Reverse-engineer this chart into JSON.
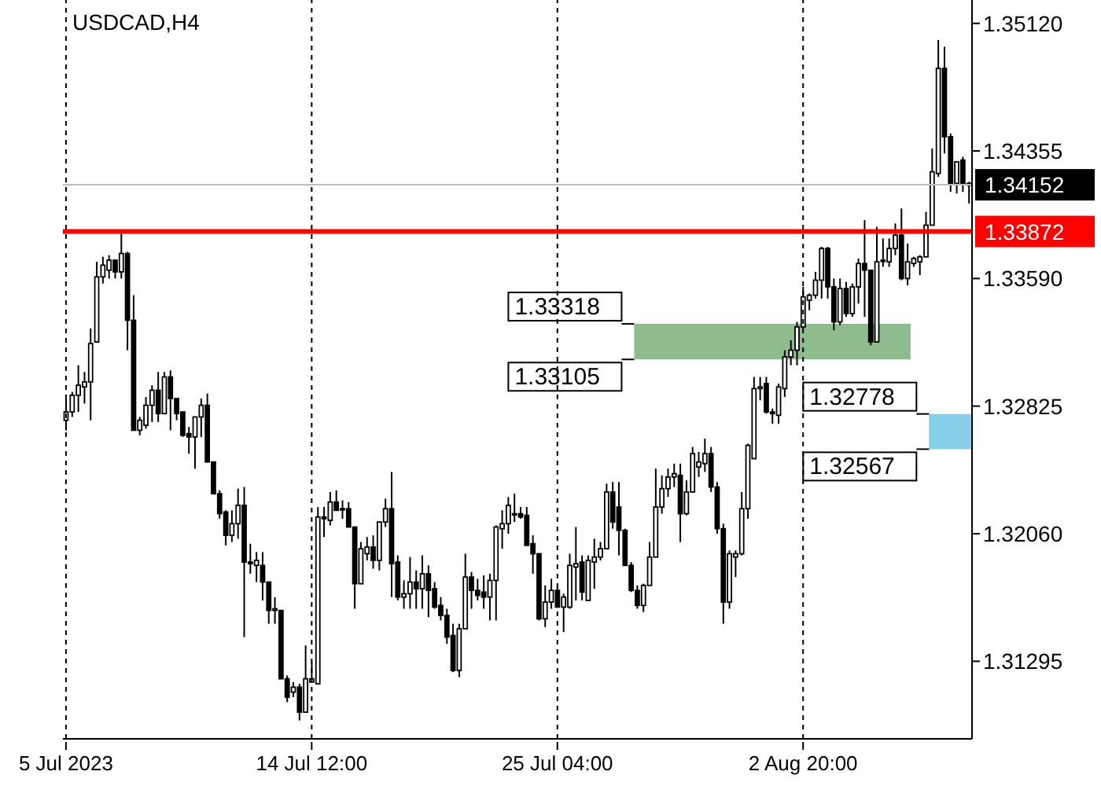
{
  "chart_data": {
    "type": "candlestick",
    "title": "USDCAD,H4",
    "color": "#000000",
    "categories": [
      "5 Jul 2023",
      null,
      null,
      null,
      null,
      null,
      null,
      null,
      null,
      null,
      null,
      null,
      null,
      null,
      null,
      null,
      null,
      null,
      null,
      null,
      null,
      null,
      null,
      null,
      null,
      null,
      null,
      null,
      null,
      null,
      null,
      null,
      null,
      null,
      null,
      null,
      null,
      null,
      null,
      null,
      "14 Jul 12:00",
      null,
      null,
      null,
      null,
      null,
      null,
      null,
      null,
      null,
      null,
      null,
      null,
      null,
      null,
      null,
      null,
      null,
      null,
      null,
      null,
      null,
      null,
      null,
      null,
      null,
      null,
      null,
      null,
      null,
      null,
      null,
      null,
      null,
      null,
      null,
      null,
      null,
      null,
      null,
      "25 Jul 04:00",
      null,
      null,
      null,
      null,
      null,
      null,
      null,
      null,
      null,
      null,
      null,
      null,
      null,
      null,
      null,
      null,
      null,
      null,
      null,
      null,
      null,
      null,
      null,
      null,
      null,
      null,
      null,
      null,
      null,
      null,
      null,
      null,
      null,
      null,
      null,
      null,
      null,
      null,
      null,
      "2 Aug 20:00",
      null,
      null,
      null,
      null,
      null,
      null,
      null,
      null,
      null,
      null,
      null,
      null,
      null,
      null,
      null,
      null,
      null,
      null,
      null,
      null,
      null,
      null,
      null,
      null,
      null,
      null,
      null
    ],
    "ohlc": [
      [
        1.3274,
        1.3287,
        1.3268,
        1.3279
      ],
      [
        1.3279,
        1.3291,
        1.3276,
        1.3289
      ],
      [
        1.3289,
        1.3307,
        1.3279,
        1.3295
      ],
      [
        1.3294,
        1.3303,
        1.3284,
        1.3297
      ],
      [
        1.3297,
        1.3329,
        1.3274,
        1.332
      ],
      [
        1.3321,
        1.3369,
        1.3321,
        1.336
      ],
      [
        1.336,
        1.3372,
        1.3356,
        1.3367
      ],
      [
        1.3364,
        1.3373,
        1.3359,
        1.337
      ],
      [
        1.337,
        1.337,
        1.3359,
        1.3363
      ],
      [
        1.3363,
        1.3386,
        1.3359,
        1.3374
      ],
      [
        1.3374,
        1.3375,
        1.3316,
        1.3334
      ],
      [
        1.3334,
        1.3349,
        1.3268,
        1.3268
      ],
      [
        1.3268,
        1.3276,
        1.3265,
        1.3274
      ],
      [
        1.3271,
        1.3288,
        1.3269,
        1.3283
      ],
      [
        1.3283,
        1.3295,
        1.3273,
        1.3292
      ],
      [
        1.3292,
        1.3303,
        1.3273,
        1.3278
      ],
      [
        1.3278,
        1.3303,
        1.3278,
        1.33
      ],
      [
        1.33,
        1.3304,
        1.3268,
        1.3287
      ],
      [
        1.3287,
        1.3287,
        1.3274,
        1.3278
      ],
      [
        1.3279,
        1.3279,
        1.3264,
        1.3265
      ],
      [
        1.3266,
        1.327,
        1.3254,
        1.3264
      ],
      [
        1.3264,
        1.3276,
        1.3245,
        1.3276
      ],
      [
        1.3276,
        1.3287,
        1.3264,
        1.3283
      ],
      [
        1.3283,
        1.329,
        1.3249,
        1.3249
      ],
      [
        1.3249,
        1.3249,
        1.323,
        1.323
      ],
      [
        1.323,
        1.3232,
        1.3215,
        1.3218
      ],
      [
        1.3219,
        1.322,
        1.3199,
        1.3205
      ],
      [
        1.3205,
        1.322,
        1.3201,
        1.3212
      ],
      [
        1.3212,
        1.3233,
        1.3203,
        1.3223
      ],
      [
        1.3223,
        1.3234,
        1.3144,
        1.3189
      ],
      [
        1.3189,
        1.32,
        1.3182,
        1.3188
      ],
      [
        1.3187,
        1.3195,
        1.3177,
        1.319
      ],
      [
        1.3187,
        1.3195,
        1.3166,
        1.3177
      ],
      [
        1.3177,
        1.3177,
        1.3152,
        1.316
      ],
      [
        1.316,
        1.3168,
        1.3152,
        1.3161
      ],
      [
        1.316,
        1.316,
        1.3119,
        1.3119
      ],
      [
        1.3119,
        1.3121,
        1.3105,
        1.3108
      ],
      [
        1.3111,
        1.3117,
        1.3108,
        1.3114
      ],
      [
        1.3114,
        1.3116,
        1.3094,
        1.3099
      ],
      [
        1.3099,
        1.3139,
        1.3099,
        1.3119
      ],
      [
        1.3117,
        1.3129,
        1.3117,
        1.3119
      ],
      [
        1.3116,
        1.3222,
        1.3116,
        1.3216
      ],
      [
        1.3216,
        1.3222,
        1.3204,
        1.3215
      ],
      [
        1.3214,
        1.3231,
        1.3211,
        1.3225
      ],
      [
        1.3225,
        1.3232,
        1.322,
        1.322
      ],
      [
        1.3221,
        1.3226,
        1.3215,
        1.3221
      ],
      [
        1.3221,
        1.3225,
        1.321,
        1.321
      ],
      [
        1.321,
        1.321,
        1.3161,
        1.3176
      ],
      [
        1.3176,
        1.3201,
        1.3176,
        1.3197
      ],
      [
        1.3194,
        1.3204,
        1.319,
        1.3198
      ],
      [
        1.3198,
        1.3205,
        1.3185,
        1.319
      ],
      [
        1.319,
        1.3213,
        1.3184,
        1.3213
      ],
      [
        1.3213,
        1.3227,
        1.321,
        1.3221
      ],
      [
        1.3221,
        1.3243,
        1.3168,
        1.3188
      ],
      [
        1.3189,
        1.3193,
        1.3166,
        1.3168
      ],
      [
        1.3168,
        1.3178,
        1.3161,
        1.317
      ],
      [
        1.317,
        1.3192,
        1.3161,
        1.3177
      ],
      [
        1.3177,
        1.3184,
        1.3161,
        1.3173
      ],
      [
        1.3173,
        1.3193,
        1.3161,
        1.3182
      ],
      [
        1.3182,
        1.3187,
        1.3156,
        1.3172
      ],
      [
        1.3173,
        1.3177,
        1.3161,
        1.3162
      ],
      [
        1.3163,
        1.3168,
        1.3154,
        1.3157
      ],
      [
        1.3157,
        1.3161,
        1.314,
        1.3144
      ],
      [
        1.3145,
        1.3152,
        1.3123,
        1.3124
      ],
      [
        1.3124,
        1.3152,
        1.312,
        1.3149
      ],
      [
        1.3149,
        1.3194,
        1.3149,
        1.318
      ],
      [
        1.318,
        1.3183,
        1.3161,
        1.3172
      ],
      [
        1.3172,
        1.3179,
        1.3166,
        1.3169
      ],
      [
        1.3171,
        1.3181,
        1.3161,
        1.3168
      ],
      [
        1.3168,
        1.3182,
        1.3154,
        1.3178
      ],
      [
        1.3178,
        1.3211,
        1.3154,
        1.321
      ],
      [
        1.3209,
        1.322,
        1.3197,
        1.3212
      ],
      [
        1.3212,
        1.3228,
        1.3206,
        1.3223
      ],
      [
        1.3218,
        1.323,
        1.3213,
        1.3218
      ],
      [
        1.3218,
        1.3222,
        1.3215,
        1.3216
      ],
      [
        1.3217,
        1.3222,
        1.3199,
        1.3199
      ],
      [
        1.32,
        1.3205,
        1.3182,
        1.3194
      ],
      [
        1.3194,
        1.3194,
        1.3154,
        1.3155
      ],
      [
        1.3155,
        1.3175,
        1.315,
        1.3165
      ],
      [
        1.3165,
        1.3179,
        1.3161,
        1.3172
      ],
      [
        1.3172,
        1.3175,
        1.3162,
        1.3162
      ],
      [
        1.3162,
        1.317,
        1.3147,
        1.3168
      ],
      [
        1.3162,
        1.3194,
        1.3161,
        1.3187
      ],
      [
        1.3186,
        1.321,
        1.3166,
        1.3188
      ],
      [
        1.3189,
        1.3193,
        1.3166,
        1.3171
      ],
      [
        1.3166,
        1.3193,
        1.3166,
        1.319
      ],
      [
        1.3189,
        1.3203,
        1.3173,
        1.3192
      ],
      [
        1.3192,
        1.3201,
        1.319,
        1.3197
      ],
      [
        1.3197,
        1.3236,
        1.3197,
        1.3231
      ],
      [
        1.3231,
        1.3237,
        1.3209,
        1.3213
      ],
      [
        1.3222,
        1.3237,
        1.3193,
        1.3208
      ],
      [
        1.3208,
        1.3209,
        1.3187,
        1.3187
      ],
      [
        1.3187,
        1.3189,
        1.3171,
        1.3172
      ],
      [
        1.3172,
        1.3175,
        1.3161,
        1.3163
      ],
      [
        1.3163,
        1.3176,
        1.3159,
        1.3175
      ],
      [
        1.3175,
        1.3201,
        1.3175,
        1.3192
      ],
      [
        1.3192,
        1.3245,
        1.3192,
        1.3222
      ],
      [
        1.3222,
        1.3241,
        1.3218,
        1.3233
      ],
      [
        1.3233,
        1.3245,
        1.3228,
        1.324
      ],
      [
        1.324,
        1.3248,
        1.3234,
        1.3242
      ],
      [
        1.3241,
        1.3248,
        1.3201,
        1.3218
      ],
      [
        1.3218,
        1.3238,
        1.3217,
        1.3231
      ],
      [
        1.3231,
        1.3258,
        1.3231,
        1.3254
      ],
      [
        1.3246,
        1.3255,
        1.324,
        1.3249
      ],
      [
        1.3248,
        1.3263,
        1.3243,
        1.3254
      ],
      [
        1.3254,
        1.3258,
        1.3231,
        1.3234
      ],
      [
        1.3234,
        1.3237,
        1.3206,
        1.3209
      ],
      [
        1.3209,
        1.3212,
        1.3152,
        1.3165
      ],
      [
        1.3165,
        1.3196,
        1.3161,
        1.3194
      ],
      [
        1.3192,
        1.3196,
        1.318,
        1.3194
      ],
      [
        1.3194,
        1.3231,
        1.3193,
        1.3221
      ],
      [
        1.3221,
        1.326,
        1.3215,
        1.3259
      ],
      [
        1.3251,
        1.33,
        1.3251,
        1.3293
      ],
      [
        1.3293,
        1.33,
        1.3286,
        1.3294
      ],
      [
        1.3296,
        1.33,
        1.3278,
        1.3279
      ],
      [
        1.3279,
        1.3281,
        1.3272,
        1.3278
      ],
      [
        1.3277,
        1.3296,
        1.3272,
        1.3294
      ],
      [
        1.3293,
        1.3316,
        1.3288,
        1.3312
      ],
      [
        1.3312,
        1.3322,
        1.3307,
        1.3316
      ],
      [
        1.3316,
        1.3333,
        1.3307,
        1.333
      ],
      [
        1.333,
        1.3354,
        1.3329,
        1.3348
      ],
      [
        1.3346,
        1.335,
        1.334,
        1.3349
      ],
      [
        1.3349,
        1.3363,
        1.3347,
        1.3358
      ],
      [
        1.3358,
        1.3378,
        1.3347,
        1.3377
      ],
      [
        1.3377,
        1.3378,
        1.3347,
        1.3354
      ],
      [
        1.3354,
        1.3359,
        1.3328,
        1.3333
      ],
      [
        1.3333,
        1.3359,
        1.3331,
        1.3353
      ],
      [
        1.3353,
        1.3357,
        1.3336,
        1.3338
      ],
      [
        1.3338,
        1.3356,
        1.3336,
        1.3354
      ],
      [
        1.3354,
        1.3371,
        1.3344,
        1.3368
      ],
      [
        1.3368,
        1.3394,
        1.3336,
        1.3364
      ],
      [
        1.3364,
        1.3364,
        1.3319,
        1.3321
      ],
      [
        1.3321,
        1.339,
        1.3321,
        1.3369
      ],
      [
        1.337,
        1.3383,
        1.3366,
        1.337
      ],
      [
        1.3369,
        1.3383,
        1.3366,
        1.3377
      ],
      [
        1.3377,
        1.3392,
        1.3373,
        1.3385
      ],
      [
        1.3385,
        1.3401,
        1.3358,
        1.3359
      ],
      [
        1.3359,
        1.338,
        1.3355,
        1.3369
      ],
      [
        1.3368,
        1.3372,
        1.3366,
        1.3371
      ],
      [
        1.3369,
        1.3373,
        1.3361,
        1.3372
      ],
      [
        1.3372,
        1.3399,
        1.3372,
        1.3391
      ],
      [
        1.3391,
        1.3437,
        1.3391,
        1.3423
      ],
      [
        1.3422,
        1.3502,
        1.342,
        1.3485
      ],
      [
        1.3485,
        1.3498,
        1.3434,
        1.3444
      ],
      [
        1.3444,
        1.3446,
        1.3411,
        1.3416
      ],
      [
        1.3416,
        1.3429,
        1.341,
        1.3429
      ],
      [
        1.343,
        1.3432,
        1.3411,
        1.3416
      ],
      [
        1.3416,
        1.3417,
        1.3404,
        1.3415
      ]
    ],
    "ylim": [
      1.3083,
      1.3526
    ],
    "yticks": [
      {
        "value": 1.31295,
        "label": "1.31295"
      },
      {
        "value": 1.3206,
        "label": "1.32060"
      },
      {
        "value": 1.32825,
        "label": "1.32825"
      },
      {
        "value": 1.3359,
        "label": "1.33590"
      },
      {
        "value": 1.34355,
        "label": "1.34355"
      },
      {
        "value": 1.3512,
        "label": "1.35120"
      }
    ],
    "grid": "x",
    "ref_lines": [
      {
        "axis": "y",
        "value": 1.34152,
        "label": "1.34152",
        "color": "#c0c0c0"
      },
      {
        "axis": "y",
        "value": 1.33872,
        "label": "1.33872",
        "color": "#ff0000"
      }
    ],
    "bands": [
      {
        "axis": "y",
        "from": 1.33105,
        "to": 1.33318,
        "color": "#8fbc8f"
      },
      {
        "axis": "y",
        "from": 1.32567,
        "to": 1.32778,
        "color": "#87ceeb"
      }
    ],
    "annotations": [
      "1.33318",
      "1.33105",
      "1.32778",
      "1.32567"
    ]
  }
}
